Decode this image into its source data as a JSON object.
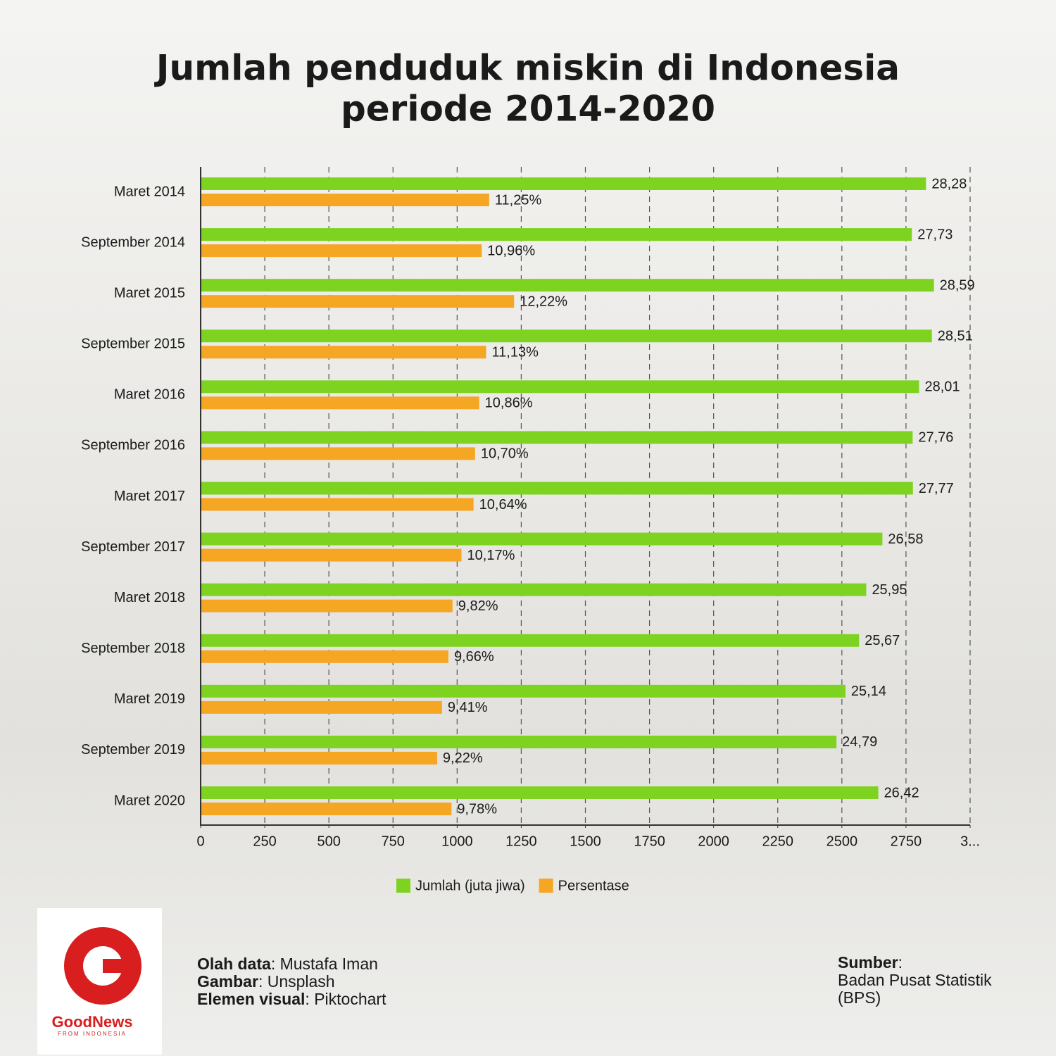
{
  "chart_data": {
    "type": "hbar",
    "title": [
      "Jumlah penduduk miskin di Indonesia",
      "periode 2014-2020"
    ],
    "categories": [
      "Maret 2014",
      "September 2014",
      "Maret 2015",
      "September 2015",
      "Maret 2016",
      "September 2016",
      "Maret 2017",
      "September 2017",
      "Maret 2018",
      "September 2018",
      "Maret 2019",
      "September 2019",
      "Maret 2020"
    ],
    "series": [
      {
        "name": "Jumlah (juta jiwa)",
        "color": "#7ed321",
        "values": [
          2828,
          2773,
          2859,
          2851,
          2801,
          2776,
          2777,
          2658,
          2595,
          2567,
          2514,
          2479,
          2642
        ],
        "value_labels": [
          "28,28",
          "27,73",
          "28,59",
          "28,51",
          "28,01",
          "27,76",
          "27,77",
          "26,58",
          "25,95",
          "25,67",
          "25,14",
          "24,79",
          "26,42"
        ]
      },
      {
        "name": "Persentase",
        "color": "#f5a623",
        "values": [
          1125,
          1096,
          1222,
          1113,
          1086,
          1070,
          1064,
          1017,
          982,
          966,
          941,
          922,
          978
        ],
        "value_labels": [
          "11,25%",
          "10,96%",
          "12,22%",
          "11,13%",
          "10,86%",
          "10,70%",
          "10,64%",
          "10,17%",
          "9,82%",
          "9,66%",
          "9,41%",
          "9,22%",
          "9,78%"
        ]
      }
    ],
    "xlim": [
      0,
      3000
    ],
    "xticks": [
      0,
      250,
      500,
      750,
      1000,
      1250,
      1500,
      1750,
      2000,
      2250,
      2500,
      2750,
      {
        "value": 3000,
        "label": "3..."
      }
    ],
    "grid": true
  },
  "credits": [
    {
      "label": "Olah data",
      "value": ": Mustafa Iman"
    },
    {
      "label": "Gambar",
      "value": ": Unsplash"
    },
    {
      "label": "Elemen visual",
      "value": ": Piktochart"
    }
  ],
  "source": {
    "label": "Sumber",
    "value": [
      ":",
      "Badan Pusat Statistik",
      "(BPS)"
    ]
  },
  "logo": {
    "name": "GoodNews",
    "tagline": "FROM INDONESIA"
  }
}
